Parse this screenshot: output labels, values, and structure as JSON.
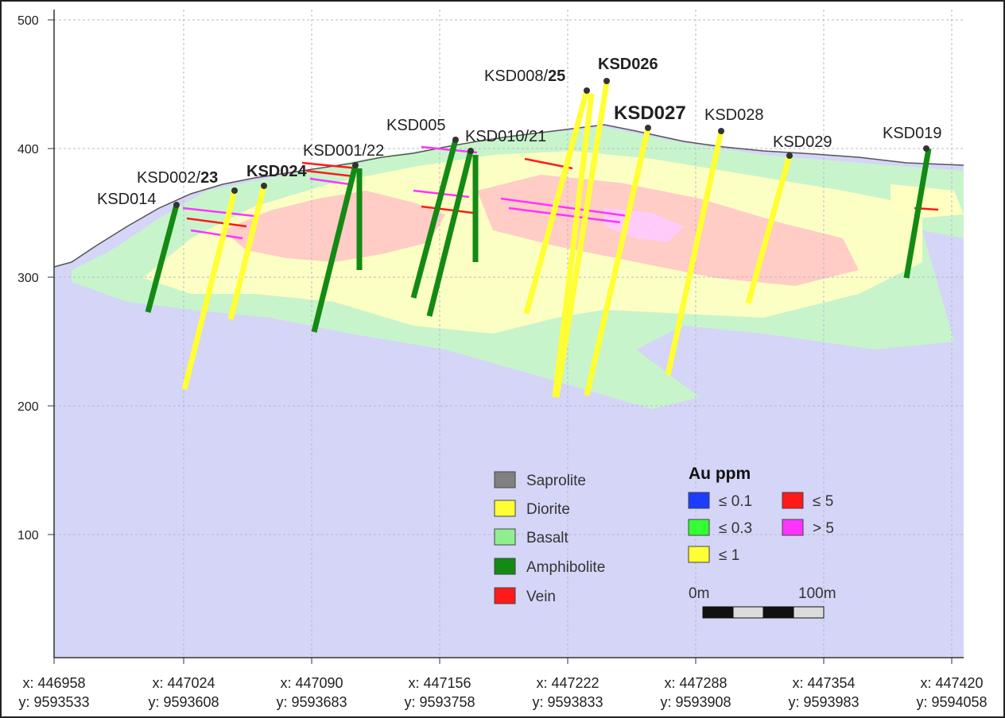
{
  "y_axis": {
    "ticks": [
      "500",
      "400",
      "300",
      "200",
      "100"
    ]
  },
  "x_axis": {
    "ticks": [
      {
        "x": "x: 446958",
        "y": "y: 9593533"
      },
      {
        "x": "x: 447024",
        "y": "y: 9593608"
      },
      {
        "x": "x: 447090",
        "y": "y: 9593683"
      },
      {
        "x": "x: 447156",
        "y": "y: 9593758"
      },
      {
        "x": "x: 447222",
        "y": "y: 9593833"
      },
      {
        "x": "x: 447288",
        "y": "y: 9593908"
      },
      {
        "x": "x: 447354",
        "y": "y: 9593983"
      },
      {
        "x": "x: 447420",
        "y": "y: 9594058"
      }
    ]
  },
  "holes": [
    {
      "id": "KSD014",
      "label": "KSD014",
      "bold": ""
    },
    {
      "id": "KSD002",
      "label": "KSD002/",
      "bold": "23"
    },
    {
      "id": "KSD024",
      "label": "",
      "bold": "KSD024"
    },
    {
      "id": "KSD001",
      "label": "KSD001/22",
      "bold": ""
    },
    {
      "id": "KSD005",
      "label": "KSD005",
      "bold": ""
    },
    {
      "id": "KSD010",
      "label": "KSD010/21",
      "bold": ""
    },
    {
      "id": "KSD008",
      "label": "KSD008/",
      "bold": "25"
    },
    {
      "id": "KSD026",
      "label": "",
      "bold": "KSD026"
    },
    {
      "id": "KSD027",
      "label": "",
      "bold": "KSD027"
    },
    {
      "id": "KSD028",
      "label": "KSD028",
      "bold": ""
    },
    {
      "id": "KSD029",
      "label": "KSD029",
      "bold": ""
    },
    {
      "id": "KSD019",
      "label": "KSD019",
      "bold": ""
    }
  ],
  "lithology_legend": [
    {
      "label": "Saprolite",
      "color": "#808080"
    },
    {
      "label": "Diorite",
      "color": "#ffff33"
    },
    {
      "label": "Basalt",
      "color": "#90ee90"
    },
    {
      "label": "Amphibolite",
      "color": "#138a13"
    },
    {
      "label": "Vein",
      "color": "#ff1a1a"
    }
  ],
  "grade_legend": {
    "title": "Au ppm",
    "items": [
      {
        "label": "≤ 0.1",
        "color": "#1a3dff"
      },
      {
        "label": "≤ 0.3",
        "color": "#33ff33"
      },
      {
        "label": "≤ 1",
        "color": "#ffff33"
      },
      {
        "label": "≤ 5",
        "color": "#ff1a1a"
      },
      {
        "label": "> 5",
        "color": "#ff33ff"
      }
    ]
  },
  "scale_bar": {
    "start": "0m",
    "end": "100m"
  }
}
